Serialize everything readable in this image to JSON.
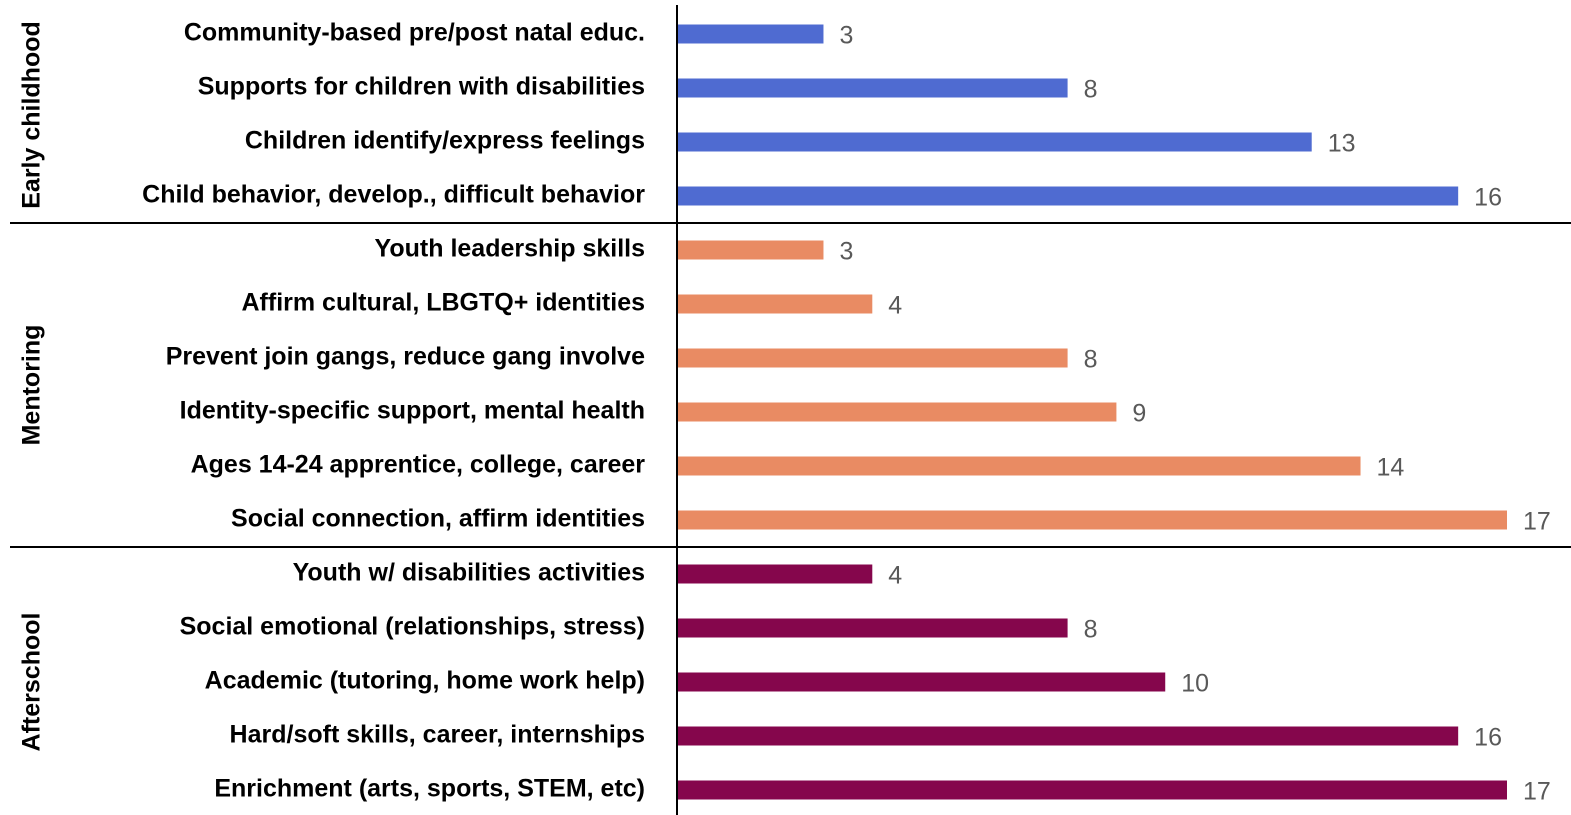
{
  "chart_data": {
    "type": "bar",
    "orientation": "horizontal",
    "series": [
      {
        "name": "Early childhood",
        "color": "#4f6bd1",
        "categories": [
          "Community-based pre/post natal educ.",
          "Supports for children with disabilities",
          "Children identify/express feelings",
          "Child behavior, develop., difficult behavior"
        ],
        "values": [
          3,
          8,
          13,
          16
        ]
      },
      {
        "name": "Mentoring",
        "color": "#e98b63",
        "categories": [
          "Youth leadership skills",
          "Affirm cultural, LBGTQ+ identities",
          "Prevent join gangs, reduce gang involve",
          "Identity-specific support, mental health",
          "Ages 14-24 apprentice, college, career",
          "Social connection, affirm identities"
        ],
        "values": [
          3,
          4,
          8,
          9,
          14,
          17
        ]
      },
      {
        "name": "Afterschool",
        "color": "#85064c",
        "categories": [
          "Youth w/ disabilities activities",
          "Social emotional (relationships, stress)",
          "Academic (tutoring, home work help)",
          "Hard/soft skills, career, internships",
          "Enrichment (arts, sports, STEM, etc)"
        ],
        "values": [
          4,
          8,
          10,
          16,
          17
        ]
      }
    ]
  }
}
